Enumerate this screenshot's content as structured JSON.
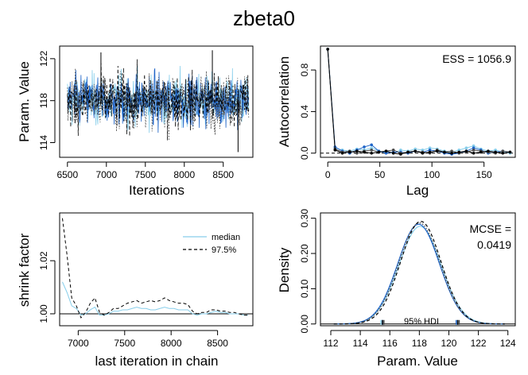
{
  "figure": {
    "title": "zbeta0"
  },
  "chart_data": [
    {
      "type": "line",
      "panel": "trace",
      "ylabel": "Param. Value",
      "xlabel": "Iterations",
      "xlim": [
        6400,
        8880
      ],
      "ylim": [
        112.6,
        123.2
      ],
      "xticks": [
        "6500",
        "7000",
        "7500",
        "8000",
        "8500"
      ],
      "yticks": [
        "114",
        "118",
        "122"
      ],
      "series": [
        {
          "color": "#87ceeb",
          "style": "solid",
          "mean": 118.0,
          "sd": 1.2
        },
        {
          "color": "#1e64c8",
          "style": "solid",
          "mean": 118.0,
          "sd": 1.2
        },
        {
          "color": "#4a4a4a",
          "style": "dotted",
          "mean": 118.0,
          "sd": 1.2
        },
        {
          "color": "#000000",
          "style": "dashed",
          "mean": 118.0,
          "sd": 1.25
        }
      ],
      "notable_points": [
        [
          6930,
          122.6
        ],
        [
          8360,
          122.8
        ],
        [
          8690,
          113.1
        ]
      ]
    },
    {
      "type": "line",
      "panel": "autocorrelation",
      "ylabel": "Autocorrelation",
      "xlabel": "Lag",
      "annotation": "ESS = 1056.9",
      "xlim": [
        -7,
        180
      ],
      "ylim": [
        -0.04,
        1.03
      ],
      "xticks": [
        "0",
        "50",
        "100",
        "150"
      ],
      "yticks": [
        "0.0",
        "0.4",
        "0.8"
      ],
      "reference_line": 0,
      "lags": [
        0,
        7,
        14,
        21,
        28,
        35,
        42,
        49,
        56,
        63,
        70,
        77,
        84,
        91,
        98,
        105,
        112,
        119,
        126,
        133,
        140,
        147,
        154,
        161,
        168,
        175
      ],
      "series": [
        {
          "color": "#87ceeb",
          "values": [
            1.0,
            0.05,
            0.03,
            0.02,
            0.04,
            0.03,
            0.05,
            0.02,
            0.01,
            0.0,
            0.03,
            0.02,
            0.04,
            0.03,
            0.05,
            0.04,
            0.02,
            0.01,
            0.03,
            0.05,
            0.07,
            0.04,
            0.02,
            0.03,
            0.01,
            0.0
          ]
        },
        {
          "color": "#1e64c8",
          "values": [
            1.0,
            0.06,
            0.02,
            0.0,
            0.03,
            0.06,
            0.08,
            0.02,
            0.0,
            0.01,
            0.01,
            0.0,
            0.02,
            0.01,
            0.03,
            0.02,
            0.0,
            -0.01,
            0.0,
            0.02,
            0.05,
            0.03,
            0.0,
            0.01,
            0.02,
            0.01
          ]
        },
        {
          "color": "#4a4a4a",
          "values": [
            1.0,
            0.04,
            0.01,
            0.02,
            0.0,
            0.02,
            0.03,
            0.01,
            0.02,
            0.03,
            0.0,
            0.01,
            0.02,
            0.01,
            0.0,
            0.03,
            0.01,
            0.02,
            0.0,
            0.01,
            0.03,
            0.02,
            0.01,
            0.0,
            0.02,
            0.01
          ]
        },
        {
          "color": "#000000",
          "values": [
            1.0,
            0.03,
            0.0,
            0.01,
            0.02,
            0.01,
            0.0,
            0.01,
            0.02,
            0.0,
            -0.01,
            0.01,
            0.02,
            0.0,
            0.01,
            0.02,
            0.01,
            0.0,
            0.01,
            0.02,
            0.0,
            0.01,
            0.02,
            0.01,
            0.0,
            0.01
          ]
        }
      ]
    },
    {
      "type": "line",
      "panel": "gelman",
      "ylabel": "shrink factor",
      "xlabel": "last iteration in chain",
      "xlim": [
        6800,
        8880
      ],
      "ylim": [
        0.9955,
        1.038
      ],
      "xticks": [
        "7000",
        "7500",
        "8000",
        "8500"
      ],
      "yticks": [
        "1.00",
        "1.02"
      ],
      "reference_line": 1.0,
      "legend": {
        "position": "top-right",
        "entries": [
          "median",
          "97.5%"
        ]
      },
      "x": [
        6830,
        6880,
        6930,
        6980,
        7030,
        7080,
        7130,
        7180,
        7230,
        7280,
        7330,
        7380,
        7430,
        7480,
        7530,
        7580,
        7630,
        7680,
        7730,
        7780,
        7830,
        7880,
        7930,
        7980,
        8030,
        8080,
        8130,
        8180,
        8230,
        8280,
        8330,
        8380,
        8430,
        8480,
        8530,
        8580,
        8630,
        8680,
        8730,
        8780,
        8830
      ],
      "series": [
        {
          "name": "median",
          "color": "#87ceeb",
          "style": "solid",
          "values": [
            1.012,
            1.008,
            1.003,
            1.002,
            0.9995,
            1.0,
            1.0015,
            1.0025,
            0.9995,
            0.9995,
            1.0,
            1.001,
            1.001,
            1.0015,
            1.0015,
            1.002,
            1.0025,
            1.002,
            1.002,
            1.0015,
            1.0015,
            1.002,
            1.0025,
            1.002,
            1.002,
            1.0015,
            1.0015,
            1.0015,
            1.0,
            0.9995,
            1.0,
            1.0,
            1.0005,
            1.001,
            1.0005,
            1.0005,
            1.0,
            1.0,
            1.0,
            0.9995,
            0.9995
          ]
        },
        {
          "name": "97.5%",
          "color": "#000000",
          "style": "dashed",
          "values": [
            1.036,
            1.022,
            1.006,
            1.003,
            0.9985,
            1.0005,
            1.004,
            1.006,
            1.0005,
            0.9995,
            1.0005,
            1.002,
            1.002,
            1.003,
            1.004,
            1.0045,
            1.005,
            1.004,
            1.0045,
            1.005,
            1.0045,
            1.005,
            1.006,
            1.005,
            1.0045,
            1.004,
            1.004,
            1.0035,
            1.001,
            1.0,
            1.0005,
            1.0005,
            1.0015,
            1.0015,
            1.001,
            1.001,
            1.0005,
            1.0005,
            1.0,
            0.9995,
            0.9995
          ]
        }
      ]
    },
    {
      "type": "line",
      "panel": "density",
      "ylabel": "Density",
      "xlabel": "Param. Value",
      "annotation_lines": [
        "MCSE =",
        "0.0419"
      ],
      "hdi_label": "95% HDI",
      "hdi_chains": [
        [
          115.4,
          120.6
        ],
        [
          115.5,
          120.5
        ],
        [
          115.6,
          120.7
        ],
        [
          115.5,
          120.6
        ]
      ],
      "xlim": [
        111.3,
        124.5
      ],
      "ylim": [
        -0.005,
        0.315
      ],
      "xticks": [
        "112",
        "114",
        "116",
        "118",
        "120",
        "122",
        "124"
      ],
      "yticks": [
        "0.00",
        "0.10",
        "0.20",
        "0.30"
      ],
      "series": [
        {
          "color": "#87ceeb",
          "style": "solid",
          "mean": 118.05,
          "sd": 1.43,
          "peak": 0.277
        },
        {
          "color": "#1e64c8",
          "style": "solid",
          "mean": 117.95,
          "sd": 1.41,
          "peak": 0.283
        },
        {
          "color": "#4a4a4a",
          "style": "dotted",
          "mean": 118.0,
          "sd": 1.39,
          "peak": 0.287
        },
        {
          "color": "#000000",
          "style": "dashed",
          "mean": 118.1,
          "sd": 1.37,
          "peak": 0.291
        }
      ]
    }
  ]
}
